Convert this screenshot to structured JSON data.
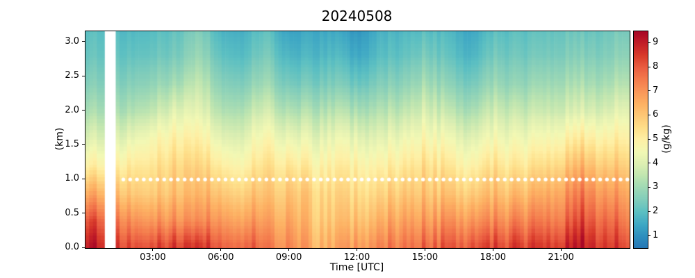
{
  "chart_data": {
    "type": "heatmap",
    "title": "20240508",
    "xlabel": "Time [UTC]",
    "ylabel": "(km)",
    "x_range_hours": [
      0,
      24
    ],
    "y_range_km": [
      0,
      3.16
    ],
    "x_hours": [
      0,
      1,
      2,
      3,
      4,
      5,
      6,
      7,
      8,
      9,
      10,
      11,
      12,
      13,
      14,
      15,
      16,
      17,
      18,
      19,
      20,
      21,
      22,
      23,
      24
    ],
    "y_km": [
      0.0,
      0.4,
      0.8,
      1.2,
      1.6,
      2.0,
      2.4,
      2.8,
      3.2
    ],
    "values_gkg": [
      [
        9.2,
        8.2,
        6.6,
        5.0,
        4.0,
        3.2,
        2.6,
        2.2,
        2.0
      ],
      [
        9.0,
        8.0,
        6.5,
        5.0,
        4.0,
        3.2,
        2.6,
        2.2,
        2.0
      ],
      [
        8.6,
        7.4,
        6.2,
        5.4,
        4.4,
        3.4,
        2.7,
        2.2,
        1.9
      ],
      [
        8.6,
        7.2,
        6.1,
        5.5,
        4.8,
        3.7,
        2.9,
        2.3,
        2.0
      ],
      [
        8.6,
        7.1,
        6.2,
        5.7,
        5.0,
        4.1,
        3.1,
        2.4,
        2.1
      ],
      [
        8.5,
        7.0,
        6.2,
        5.6,
        4.9,
        4.1,
        3.5,
        2.9,
        2.5
      ],
      [
        8.5,
        7.4,
        6.4,
        5.4,
        4.4,
        3.5,
        2.8,
        2.2,
        1.8
      ],
      [
        8.2,
        7.0,
        6.0,
        5.0,
        4.2,
        3.4,
        2.6,
        2.0,
        1.7
      ],
      [
        7.6,
        6.8,
        6.1,
        5.5,
        4.8,
        3.9,
        3.1,
        2.5,
        2.1
      ],
      [
        7.2,
        6.6,
        6.0,
        5.2,
        4.2,
        3.2,
        2.3,
        1.7,
        1.3
      ],
      [
        6.6,
        6.1,
        5.8,
        5.0,
        4.2,
        3.3,
        2.4,
        1.8,
        1.5
      ],
      [
        6.6,
        6.0,
        5.6,
        5.0,
        4.3,
        3.4,
        2.5,
        1.9,
        1.5
      ],
      [
        7.0,
        6.2,
        5.6,
        5.0,
        4.2,
        3.2,
        2.2,
        1.5,
        1.1
      ],
      [
        7.5,
        6.6,
        5.8,
        5.0,
        4.2,
        3.4,
        2.6,
        2.0,
        1.7
      ],
      [
        7.6,
        6.8,
        6.0,
        5.2,
        4.4,
        3.5,
        2.7,
        2.1,
        1.8
      ],
      [
        8.0,
        7.0,
        6.2,
        5.6,
        4.8,
        4.0,
        3.2,
        2.5,
        2.0
      ],
      [
        8.0,
        7.0,
        6.0,
        5.2,
        4.4,
        3.5,
        2.7,
        2.1,
        1.8
      ],
      [
        8.1,
        6.9,
        5.8,
        4.8,
        4.0,
        3.1,
        2.3,
        1.7,
        1.4
      ],
      [
        8.5,
        7.3,
        6.3,
        5.5,
        4.6,
        3.8,
        3.0,
        2.4,
        2.0
      ],
      [
        8.5,
        7.3,
        6.2,
        5.2,
        4.4,
        3.6,
        2.8,
        2.3,
        2.0
      ],
      [
        8.6,
        7.5,
        6.5,
        5.5,
        4.6,
        3.7,
        3.0,
        2.4,
        2.1
      ],
      [
        8.7,
        7.6,
        6.8,
        5.8,
        4.8,
        3.8,
        3.1,
        2.5,
        2.2
      ],
      [
        9.2,
        8.3,
        7.5,
        6.4,
        5.2,
        4.0,
        3.2,
        2.6,
        2.2
      ],
      [
        8.7,
        7.9,
        7.0,
        6.0,
        5.0,
        4.0,
        3.2,
        2.6,
        2.3
      ],
      [
        8.2,
        7.3,
        6.6,
        5.8,
        5.0,
        4.2,
        3.4,
        2.8,
        2.4
      ]
    ],
    "missing_data_hours": [
      0.75,
      1.33
    ],
    "marker_line": {
      "height_km": 1.0,
      "style": "white-dotted",
      "start_hour": 1.67,
      "end_hour": 23.92
    }
  },
  "axes": {
    "x_ticks": [
      {
        "hour": 3,
        "label": "03:00"
      },
      {
        "hour": 6,
        "label": "06:00"
      },
      {
        "hour": 9,
        "label": "09:00"
      },
      {
        "hour": 12,
        "label": "12:00"
      },
      {
        "hour": 15,
        "label": "15:00"
      },
      {
        "hour": 18,
        "label": "18:00"
      },
      {
        "hour": 21,
        "label": "21:00"
      }
    ],
    "y_ticks": [
      {
        "km": 0.0,
        "label": "0.0"
      },
      {
        "km": 0.5,
        "label": "0.5"
      },
      {
        "km": 1.0,
        "label": "1.0"
      },
      {
        "km": 1.5,
        "label": "1.5"
      },
      {
        "km": 2.0,
        "label": "2.0"
      },
      {
        "km": 2.5,
        "label": "2.5"
      },
      {
        "km": 3.0,
        "label": "3.0"
      }
    ]
  },
  "colorbar": {
    "label": "(g/kg)",
    "range": [
      0.5,
      9.5
    ],
    "ticks": [
      {
        "value": 1,
        "label": "1"
      },
      {
        "value": 2,
        "label": "2"
      },
      {
        "value": 3,
        "label": "3"
      },
      {
        "value": 4,
        "label": "4"
      },
      {
        "value": 5,
        "label": "5"
      },
      {
        "value": 6,
        "label": "6"
      },
      {
        "value": 7,
        "label": "7"
      },
      {
        "value": 8,
        "label": "8"
      },
      {
        "value": 9,
        "label": "9"
      }
    ],
    "colormap_stops": [
      [
        0.5,
        "#2677b5"
      ],
      [
        1.0,
        "#2e8fbe"
      ],
      [
        1.5,
        "#3fa8c4"
      ],
      [
        2.0,
        "#5bbfc2"
      ],
      [
        2.5,
        "#7fccbb"
      ],
      [
        3.0,
        "#9dd8b5"
      ],
      [
        3.5,
        "#bfe5b0"
      ],
      [
        4.0,
        "#ddefb2"
      ],
      [
        4.5,
        "#f2f8b4"
      ],
      [
        5.0,
        "#fef0a6"
      ],
      [
        5.5,
        "#fedf8a"
      ],
      [
        6.0,
        "#fdc877"
      ],
      [
        6.5,
        "#fdb163"
      ],
      [
        7.0,
        "#f9975a"
      ],
      [
        7.5,
        "#f47c4d"
      ],
      [
        8.0,
        "#ea5e42"
      ],
      [
        8.5,
        "#d93b2b"
      ],
      [
        9.0,
        "#c31f27"
      ],
      [
        9.5,
        "#a80726"
      ]
    ],
    "missing_color": "#ffffff",
    "marker_color": "#ffffff"
  }
}
